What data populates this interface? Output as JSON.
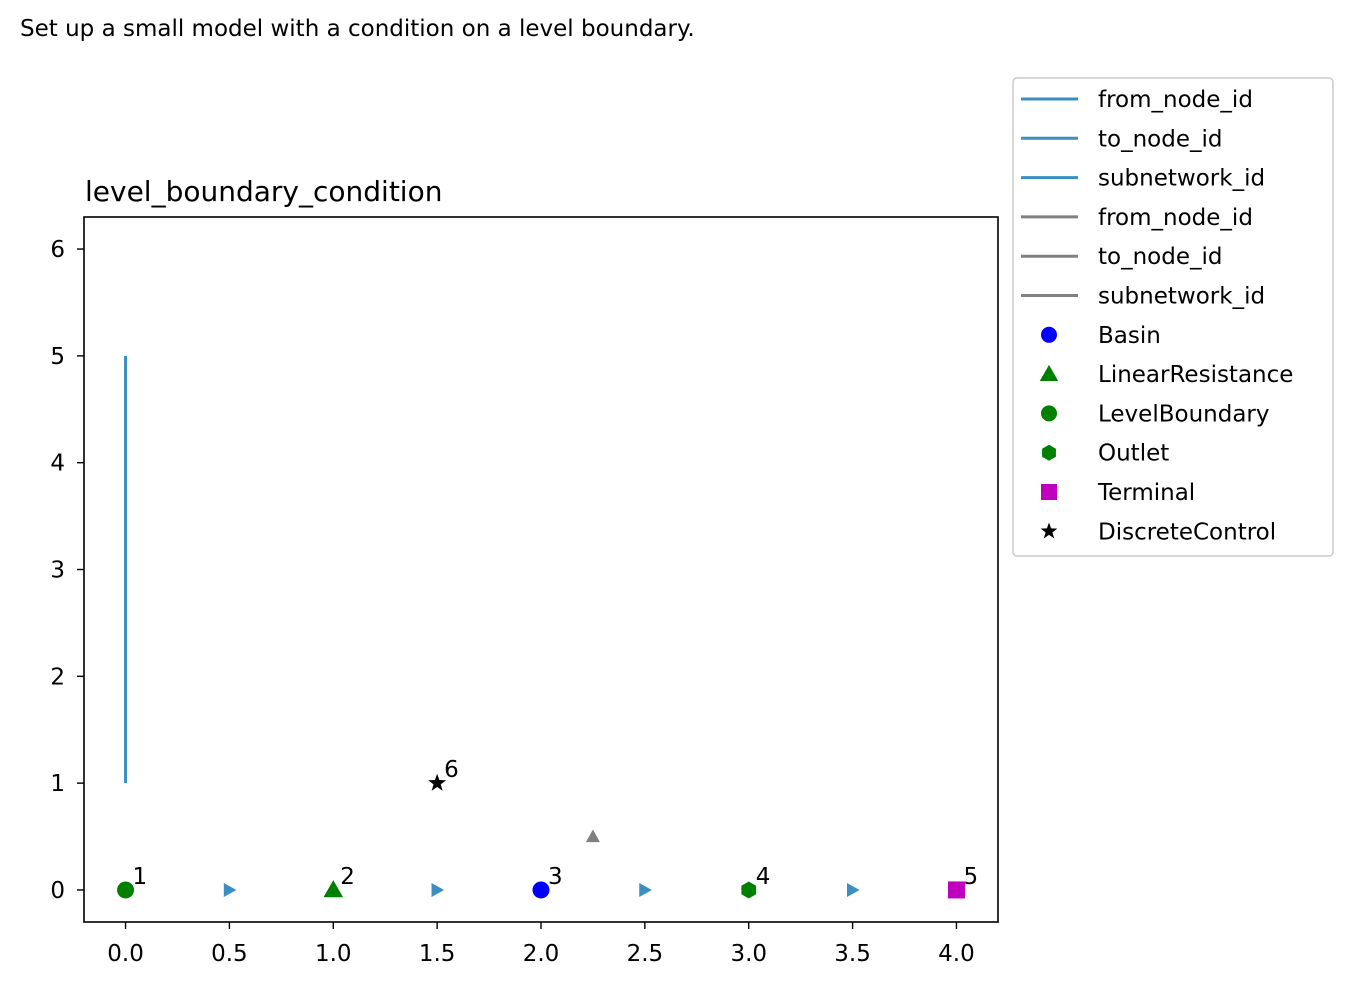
{
  "caption": "Set up a small model with a condition on a level boundary.",
  "chart_data": {
    "type": "scatter",
    "title": "level_boundary_condition",
    "xlabel": "",
    "ylabel": "",
    "xlim": [
      -0.2,
      4.2
    ],
    "ylim": [
      -0.3,
      6.3
    ],
    "xticks": [
      "0.0",
      "0.5",
      "1.0",
      "1.5",
      "2.0",
      "2.5",
      "3.0",
      "3.5",
      "4.0"
    ],
    "yticks": [
      "0",
      "1",
      "2",
      "3",
      "4",
      "5",
      "6"
    ],
    "grid": false,
    "legend_position": "outside-right",
    "legend": [
      {
        "label": "from_node_id",
        "kind": "line",
        "color": "#3a8fc0"
      },
      {
        "label": "to_node_id",
        "kind": "line",
        "color": "#3a8fc0"
      },
      {
        "label": "subnetwork_id",
        "kind": "line",
        "color": "#3a8fc0"
      },
      {
        "label": "from_node_id",
        "kind": "line",
        "color": "#808080"
      },
      {
        "label": "to_node_id",
        "kind": "line",
        "color": "#808080"
      },
      {
        "label": "subnetwork_id",
        "kind": "line",
        "color": "#808080"
      },
      {
        "label": "Basin",
        "kind": "circle",
        "color": "#0000ff"
      },
      {
        "label": "LinearResistance",
        "kind": "triangle",
        "color": "#008000"
      },
      {
        "label": "LevelBoundary",
        "kind": "circle",
        "color": "#008000"
      },
      {
        "label": "Outlet",
        "kind": "hexagon",
        "color": "#008000"
      },
      {
        "label": "Terminal",
        "kind": "square",
        "color": "#bf00bf"
      },
      {
        "label": "DiscreteControl",
        "kind": "star",
        "color": "#000000"
      }
    ],
    "nodes": [
      {
        "id": "1",
        "type": "LevelBoundary",
        "x": 0,
        "y": 0,
        "marker": "circle",
        "color": "#008000"
      },
      {
        "id": "2",
        "type": "LinearResistance",
        "x": 1,
        "y": 0,
        "marker": "triangle",
        "color": "#008000"
      },
      {
        "id": "3",
        "type": "Basin",
        "x": 2,
        "y": 0,
        "marker": "circle",
        "color": "#0000ff"
      },
      {
        "id": "4",
        "type": "Outlet",
        "x": 3,
        "y": 0,
        "marker": "hexagon",
        "color": "#008000"
      },
      {
        "id": "5",
        "type": "Terminal",
        "x": 4,
        "y": 0,
        "marker": "square",
        "color": "#bf00bf"
      },
      {
        "id": "6",
        "type": "DiscreteControl",
        "x": 1.5,
        "y": 1,
        "marker": "star",
        "color": "#000000"
      }
    ],
    "flow_arrows": [
      {
        "x": 0.5,
        "y": 0,
        "direction": "right",
        "color": "#3a8fc0"
      },
      {
        "x": 1.5,
        "y": 0,
        "direction": "right",
        "color": "#3a8fc0"
      },
      {
        "x": 2.5,
        "y": 0,
        "direction": "right",
        "color": "#3a8fc0"
      },
      {
        "x": 3.5,
        "y": 0,
        "direction": "right",
        "color": "#3a8fc0"
      },
      {
        "x": 2.25,
        "y": 0.5,
        "direction": "up",
        "color": "#808080"
      }
    ],
    "segments": [
      {
        "x": [
          0,
          0
        ],
        "y": [
          1,
          5
        ],
        "color": "#3a8fc0"
      }
    ]
  }
}
